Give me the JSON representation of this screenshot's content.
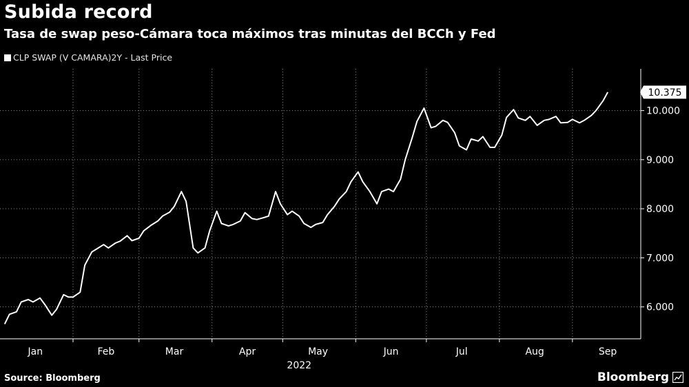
{
  "title": "Subida record",
  "subtitle": "Tasa de swap peso-Cámara toca máximos tras minutas del BCCh y Fed",
  "legend_label": "CLP SWAP (V CAMARA)2Y - Last Price",
  "source": "Source: Bloomberg",
  "brand": "Bloomberg",
  "colors": {
    "background": "#000000",
    "line": "#ffffff",
    "grid": "#8a8a8a",
    "text": "#ffffff"
  },
  "chart_data": {
    "type": "line",
    "year_label": "2022",
    "x_tick_labels": [
      "Jan",
      "Feb",
      "Mar",
      "Apr",
      "May",
      "Jun",
      "Jul",
      "Aug",
      "Sep"
    ],
    "y_tick_labels": [
      "6.000",
      "7.000",
      "8.000",
      "9.000",
      "10.000"
    ],
    "y_ticks": [
      6,
      7,
      8,
      9,
      10
    ],
    "ylim": [
      5.35,
      10.85
    ],
    "grid": true,
    "legend_position": "top-left",
    "last_value_label": "10.375",
    "series": [
      {
        "name": "CLP SWAP (V CAMARA)2Y - Last Price",
        "x": [
          "2022-01-03",
          "2022-01-05",
          "2022-01-08",
          "2022-01-10",
          "2022-01-13",
          "2022-01-15",
          "2022-01-18",
          "2022-01-20",
          "2022-01-23",
          "2022-01-25",
          "2022-01-28",
          "2022-01-30",
          "2022-02-01",
          "2022-02-04",
          "2022-02-06",
          "2022-02-09",
          "2022-02-11",
          "2022-02-14",
          "2022-02-16",
          "2022-02-19",
          "2022-02-21",
          "2022-02-24",
          "2022-02-26",
          "2022-03-01",
          "2022-03-03",
          "2022-03-06",
          "2022-03-09",
          "2022-03-11",
          "2022-03-14",
          "2022-03-16",
          "2022-03-19",
          "2022-03-21",
          "2022-03-24",
          "2022-03-26",
          "2022-03-29",
          "2022-03-31",
          "2022-04-03",
          "2022-04-05",
          "2022-04-08",
          "2022-04-10",
          "2022-04-13",
          "2022-04-15",
          "2022-04-18",
          "2022-04-20",
          "2022-04-23",
          "2022-04-25",
          "2022-04-28",
          "2022-04-30",
          "2022-05-03",
          "2022-05-05",
          "2022-05-08",
          "2022-05-10",
          "2022-05-13",
          "2022-05-15",
          "2022-05-18",
          "2022-05-20",
          "2022-05-23",
          "2022-05-25",
          "2022-05-28",
          "2022-05-30",
          "2022-06-02",
          "2022-06-04",
          "2022-06-07",
          "2022-06-10",
          "2022-06-12",
          "2022-06-15",
          "2022-06-17",
          "2022-06-20",
          "2022-06-22",
          "2022-06-25",
          "2022-06-27",
          "2022-06-30",
          "2022-07-03",
          "2022-07-05",
          "2022-07-08",
          "2022-07-10",
          "2022-07-13",
          "2022-07-15",
          "2022-07-18",
          "2022-07-20",
          "2022-07-23",
          "2022-07-25",
          "2022-07-28",
          "2022-07-30",
          "2022-08-02",
          "2022-08-04",
          "2022-08-07",
          "2022-08-09",
          "2022-08-12",
          "2022-08-14",
          "2022-08-17",
          "2022-08-20",
          "2022-08-22",
          "2022-08-25",
          "2022-08-27",
          "2022-08-30",
          "2022-09-01",
          "2022-09-04",
          "2022-09-06",
          "2022-09-09",
          "2022-09-11",
          "2022-09-14",
          "2022-09-16"
        ],
        "values": [
          5.65,
          5.85,
          5.9,
          6.1,
          6.15,
          6.1,
          6.18,
          6.05,
          5.83,
          5.95,
          6.25,
          6.2,
          6.2,
          6.3,
          6.85,
          7.12,
          7.18,
          7.27,
          7.2,
          7.3,
          7.34,
          7.45,
          7.35,
          7.4,
          7.55,
          7.66,
          7.75,
          7.85,
          7.93,
          8.05,
          8.35,
          8.15,
          7.2,
          7.1,
          7.2,
          7.55,
          7.95,
          7.7,
          7.65,
          7.68,
          7.75,
          7.92,
          7.8,
          7.78,
          7.82,
          7.85,
          8.35,
          8.1,
          7.88,
          7.95,
          7.85,
          7.7,
          7.62,
          7.68,
          7.72,
          7.88,
          8.05,
          8.2,
          8.35,
          8.55,
          8.75,
          8.55,
          8.35,
          8.1,
          8.35,
          8.4,
          8.35,
          8.6,
          9.0,
          9.45,
          9.78,
          10.05,
          9.65,
          9.68,
          9.8,
          9.76,
          9.55,
          9.28,
          9.2,
          9.42,
          9.38,
          9.47,
          9.25,
          9.25,
          9.5,
          9.86,
          10.02,
          9.85,
          9.8,
          9.88,
          9.7,
          9.8,
          9.82,
          9.88,
          9.75,
          9.76,
          9.82,
          9.75,
          9.8,
          9.9,
          10.0,
          10.2,
          10.375
        ]
      }
    ]
  }
}
